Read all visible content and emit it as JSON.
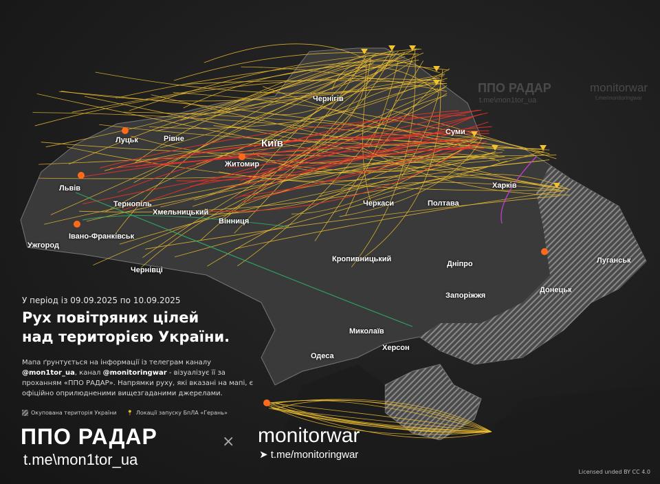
{
  "period": "У період із 09.09.2025 по 10.09.2025",
  "title_line1": "Рух повітряних цілей",
  "title_line2": "над територією України.",
  "description": {
    "p1": "Мапа ґрунтується на інформації із телеграм каналу ",
    "h1": "@mon1tor_ua",
    "p2": ", канал ",
    "h2": "@monitoringwar",
    "p3": " - візуалізує її за проханням «ППО РАДАР». Напрямки руху, які вказані на мапі, є офіційно оприлюдненими вищезгаданими джерелами."
  },
  "legend": {
    "occupied": "Окупована територія України",
    "launch": "Локації запуску БпЛА «Герань»"
  },
  "brand": {
    "ppo": "ППО РАДАР",
    "ppo_link": "t.me\\mon1tor_ua",
    "times": "×",
    "mw": "monitorwar",
    "mw_link": "t.me/monitoringwar",
    "telegram_icon": "telegram-icon"
  },
  "watermark": {
    "ppo": "ППО РАДАР",
    "ppo_link": "t.me\\mon1tor_ua",
    "mw": "monitorwar",
    "mw_link": "t.me/monitoringwar"
  },
  "license": "Licensed unded BY CC 4.0",
  "cities": [
    "Чернігів",
    "Суми",
    "Київ",
    "Луцьк",
    "Рівне",
    "Житомир",
    "Львів",
    "Тернопіль",
    "Хмельницький",
    "Вінниця",
    "Черкаси",
    "Полтава",
    "Харків",
    "Івано-Франківськ",
    "Ужгород",
    "Чернівці",
    "Кропивницький",
    "Дніпро",
    "Запоріжжя",
    "Луганськ",
    "Донецьк",
    "Миколаїв",
    "Херсон",
    "Одеса"
  ],
  "colors": {
    "shahed": "#f2c230",
    "missile": "#e8322a",
    "other": "#2fb36a",
    "jet": "#d040e0",
    "occupied_hatch": "#888888"
  }
}
